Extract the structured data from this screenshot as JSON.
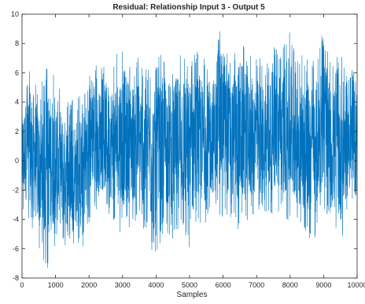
{
  "chart_data": {
    "type": "line",
    "title": "Residual: Relationship Input 3 - Output 5",
    "xlabel": "Samples",
    "ylabel": "",
    "xlim": [
      0,
      10000
    ],
    "ylim": [
      -8,
      10
    ],
    "x_ticks": [
      0,
      1000,
      2000,
      3000,
      4000,
      5000,
      6000,
      7000,
      8000,
      9000,
      10000
    ],
    "x_tick_labels": [
      "0",
      "1000",
      "2000",
      "3000",
      "4000",
      "5000",
      "6000",
      "7000",
      "8000",
      "9000",
      "10000"
    ],
    "y_ticks": [
      -8,
      -6,
      -4,
      -2,
      0,
      2,
      4,
      6,
      8,
      10
    ],
    "y_tick_labels": [
      "-8",
      "-6",
      "-4",
      "-2",
      "0",
      "2",
      "4",
      "6",
      "8",
      "10"
    ],
    "grid": false,
    "legend": "none",
    "line_color": "#0072BD",
    "series": [
      {
        "x": [
          0,
          250,
          500,
          750,
          1000,
          1250,
          1500,
          1750,
          2000,
          2100,
          2250,
          2500,
          2750,
          3000,
          3250,
          3500,
          3750,
          4000,
          4250,
          4500,
          4750,
          5000,
          5250,
          5500,
          5750,
          6000,
          6250,
          6500,
          6750,
          7000,
          7250,
          7500,
          7750,
          8000,
          8250,
          8500,
          8750,
          9000,
          9250,
          9500,
          9750,
          10000
        ],
        "y_upper": [
          4.3,
          6.8,
          5.0,
          6.6,
          6.2,
          4.3,
          4.2,
          4.5,
          6.0,
          8.2,
          6.0,
          6.8,
          6.8,
          8.4,
          6.8,
          7.2,
          6.3,
          6.8,
          7.7,
          6.8,
          8.4,
          7.2,
          7.8,
          6.8,
          7.3,
          9.9,
          6.9,
          8.9,
          7.2,
          7.3,
          6.8,
          7.8,
          7.7,
          9.1,
          7.2,
          7.2,
          6.8,
          9.0,
          6.4,
          7.6,
          6.2,
          6.6
        ],
        "y_lower": [
          -3.8,
          -4.3,
          -6.3,
          -7.4,
          -5.8,
          -6.0,
          -5.5,
          -6.5,
          -4.3,
          -3.3,
          -3.5,
          -3.5,
          -4.5,
          -5.0,
          -4.4,
          -4.2,
          -5.3,
          -7.2,
          -4.6,
          -5.5,
          -4.9,
          -6.1,
          -5.0,
          -4.2,
          -3.7,
          -4.0,
          -4.0,
          -4.9,
          -4.2,
          -3.9,
          -4.2,
          -3.5,
          -3.9,
          -4.3,
          -4.7,
          -5.4,
          -5.3,
          -3.3,
          -5.1,
          -6.2,
          -3.5,
          -4.1
        ]
      }
    ]
  }
}
